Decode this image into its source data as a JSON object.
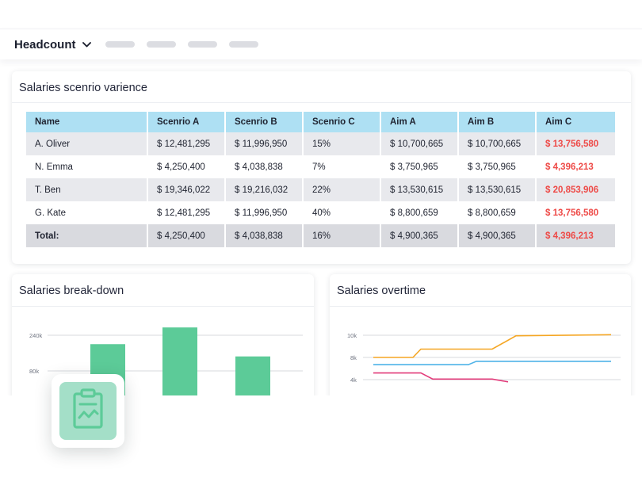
{
  "header": {
    "title": "Headcount"
  },
  "variance": {
    "title": "Salaries scenrio varience",
    "columns": [
      "Name",
      "Scenrio A",
      "Scenrio B",
      "Scenrio C",
      "Aim A",
      "Aim B",
      "Aim C"
    ],
    "rows": [
      [
        "A. Oliver",
        "$ 12,481,295",
        "$ 11,996,950",
        "15%",
        "$ 10,700,665",
        "$ 10,700,665",
        "$ 13,756,580"
      ],
      [
        "N. Emma",
        "$ 4,250,400",
        "$ 4,038,838",
        "7%",
        "$ 3,750,965",
        "$ 3,750,965",
        "$ 4,396,213"
      ],
      [
        "T. Ben",
        "$ 19,346,022",
        "$ 19,216,032",
        "22%",
        "$ 13,530,615",
        "$ 13,530,615",
        "$ 20,853,906"
      ],
      [
        "G. Kate",
        "$ 12,481,295",
        "$ 11,996,950",
        "40%",
        "$ 8,800,659",
        "$ 8,800,659",
        "$ 13,756,580"
      ]
    ],
    "total": [
      "Total:",
      "$ 4,250,400",
      "$ 4,038,838",
      "16%",
      "$ 4,900,365",
      "$ 4,900,365",
      "$ 4,396,213"
    ]
  },
  "breakdown": {
    "title": "Salaries break-down",
    "chart_data": {
      "type": "bar",
      "y_ticks": [
        "240k",
        "80k"
      ],
      "values": [
        200000,
        275000,
        145000
      ],
      "color": "#5ccb98"
    }
  },
  "overtime": {
    "title": "Salaries overtime",
    "chart_data": {
      "type": "line",
      "y_ticks": [
        "10k",
        "8k",
        "4k"
      ],
      "series": [
        {
          "color": "#f5a623",
          "points": [
            [
              0,
              8000
            ],
            [
              0.5,
              8000
            ],
            [
              0.6,
              8750
            ],
            [
              1.5,
              8750
            ],
            [
              1.8,
              9950
            ],
            [
              3.0,
              10050
            ]
          ]
        },
        {
          "color": "#4fb3e8",
          "points": [
            [
              0,
              6700
            ],
            [
              1.2,
              6700
            ],
            [
              1.3,
              7300
            ],
            [
              3.0,
              7300
            ]
          ]
        },
        {
          "color": "#e23b7a",
          "points": [
            [
              0,
              5200
            ],
            [
              0.6,
              5200
            ],
            [
              0.75,
              4100
            ],
            [
              1.5,
              4100
            ],
            [
              1.7,
              3600
            ]
          ]
        }
      ]
    }
  },
  "accent": {
    "icon": "clipboard-chart-icon",
    "icon_color": "#5ccb98"
  }
}
